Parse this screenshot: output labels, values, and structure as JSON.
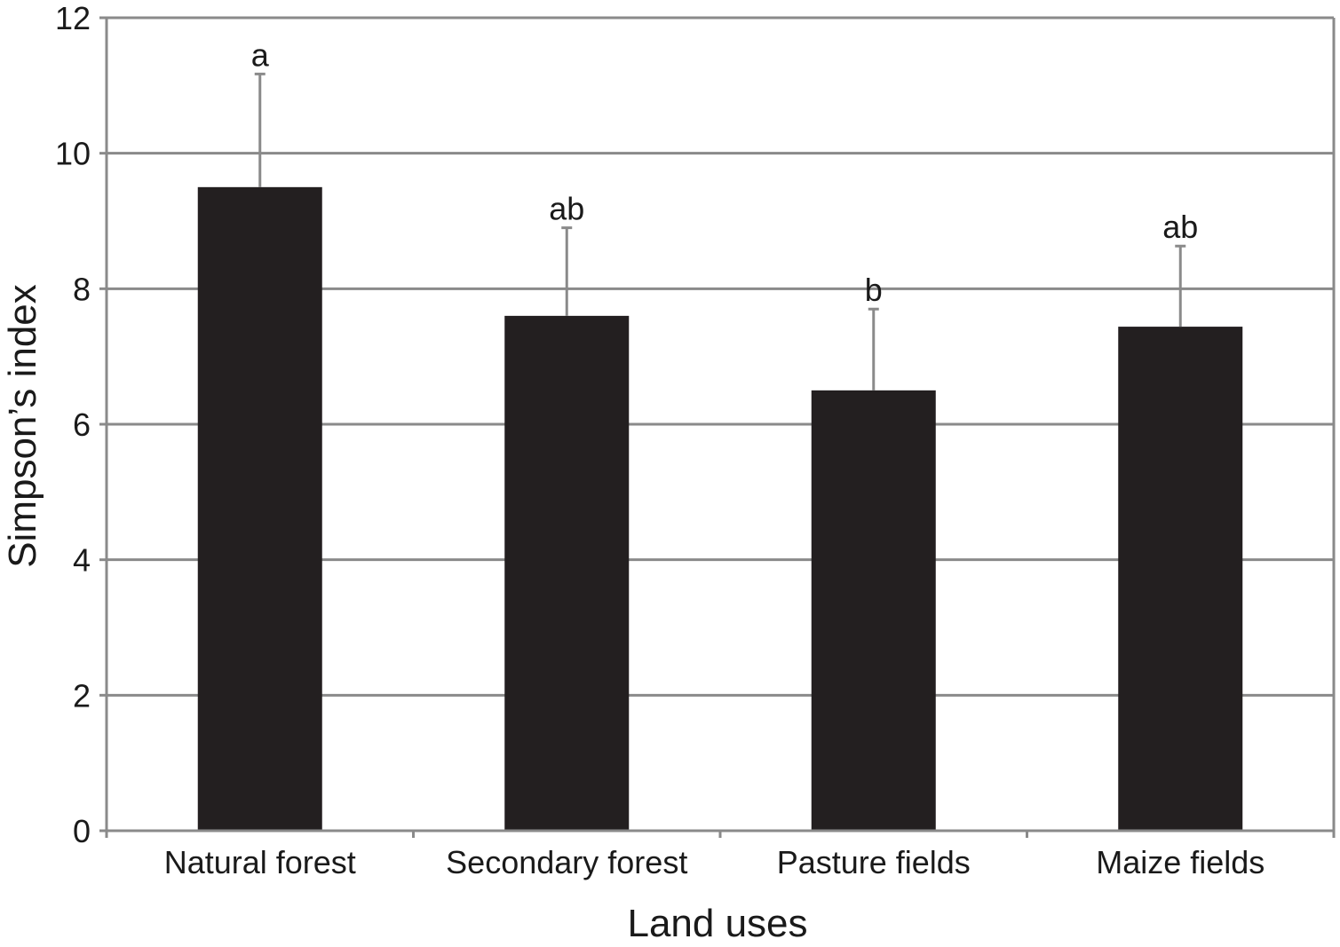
{
  "chart_data": {
    "type": "bar",
    "title": "",
    "xlabel": "Land uses",
    "ylabel": "Simpson’s index",
    "ylim": [
      0,
      12
    ],
    "yticks": [
      0,
      2,
      4,
      6,
      8,
      10,
      12
    ],
    "grid": true,
    "categories": [
      "Natural forest",
      "Secondary forest",
      "Pasture fields",
      "Maize fields"
    ],
    "values": [
      9.5,
      7.6,
      6.5,
      7.44
    ],
    "error_upper": [
      11.17,
      8.9,
      7.7,
      8.63
    ],
    "significance_labels": [
      "a",
      "ab",
      "b",
      "ab"
    ],
    "colors": {
      "bar": "#231f20",
      "grid": "#8a8a8a",
      "error_bar": "#8a8a8a",
      "axis": "#8a8a8a"
    }
  }
}
